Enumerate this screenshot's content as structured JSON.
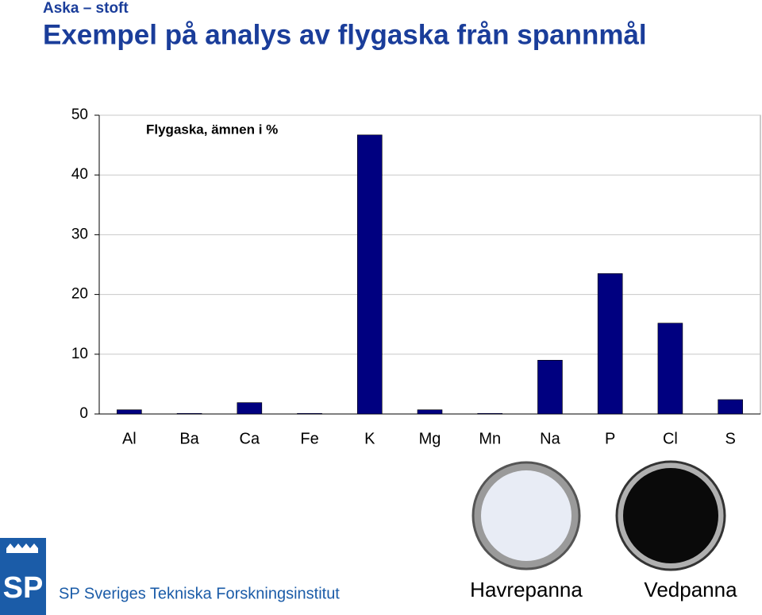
{
  "header": {
    "kicker": "Aska – stoft",
    "title": "Exempel på analys av flygaska från spannmål"
  },
  "chart_data": {
    "type": "bar",
    "title": "Flygaska, ämnen i %",
    "categories": [
      "Al",
      "Ba",
      "Ca",
      "Fe",
      "K",
      "Mg",
      "Mn",
      "Na",
      "P",
      "Cl",
      "S"
    ],
    "values": [
      0.7,
      0.1,
      1.9,
      0.1,
      46.7,
      0.7,
      0.1,
      9.0,
      23.5,
      15.2,
      2.4
    ],
    "color": "#000080",
    "ylim": [
      0,
      50
    ],
    "yticks": [
      0,
      10,
      20,
      30,
      40,
      50
    ],
    "grid": true
  },
  "photos": [
    {
      "label": "Havrepanna"
    },
    {
      "label": "Vedpanna"
    }
  ],
  "logo": {
    "mark": "SP",
    "text": "SP Sveriges Tekniska Forskningsinstitut"
  }
}
